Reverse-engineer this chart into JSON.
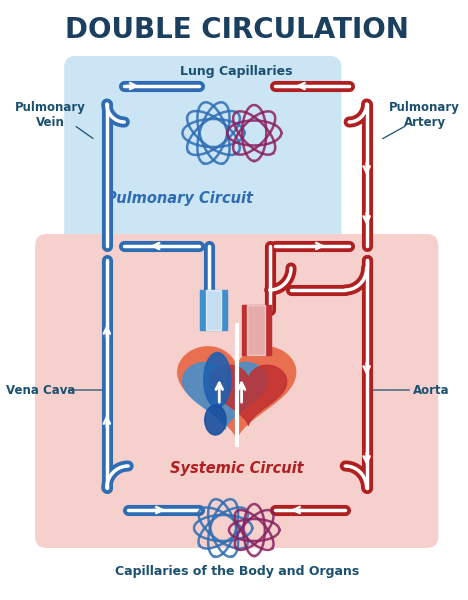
{
  "title": "DOUBLE CIRCULATION",
  "title_color": "#1b3f5e",
  "title_fontsize": 20,
  "bg_color": "#ffffff",
  "blue": "#2e6db4",
  "blue_lt": "#cce5f5",
  "red": "#b02020",
  "red_lt": "#f5d0cc",
  "teal": "#1b5070",
  "label_fs": 8.5,
  "circuit_fs": 10.5,
  "lw_tube": 8,
  "lw_white": 2.5,
  "lw_label_line": 0.9,
  "labels": {
    "title": "DOUBLE CIRCULATION",
    "lung_cap": "Lung Capillaries",
    "pulm_vein": "Pulmonary\nVein",
    "pulm_artery": "Pulmonary\nArtery",
    "pulm_circuit": "Pulmonary Circuit",
    "vena_cava": "Vena Cava",
    "aorta": "Aorta",
    "systemic_circuit": "Systemic Circuit",
    "body_cap": "Capillaries of the Body and Organs"
  }
}
